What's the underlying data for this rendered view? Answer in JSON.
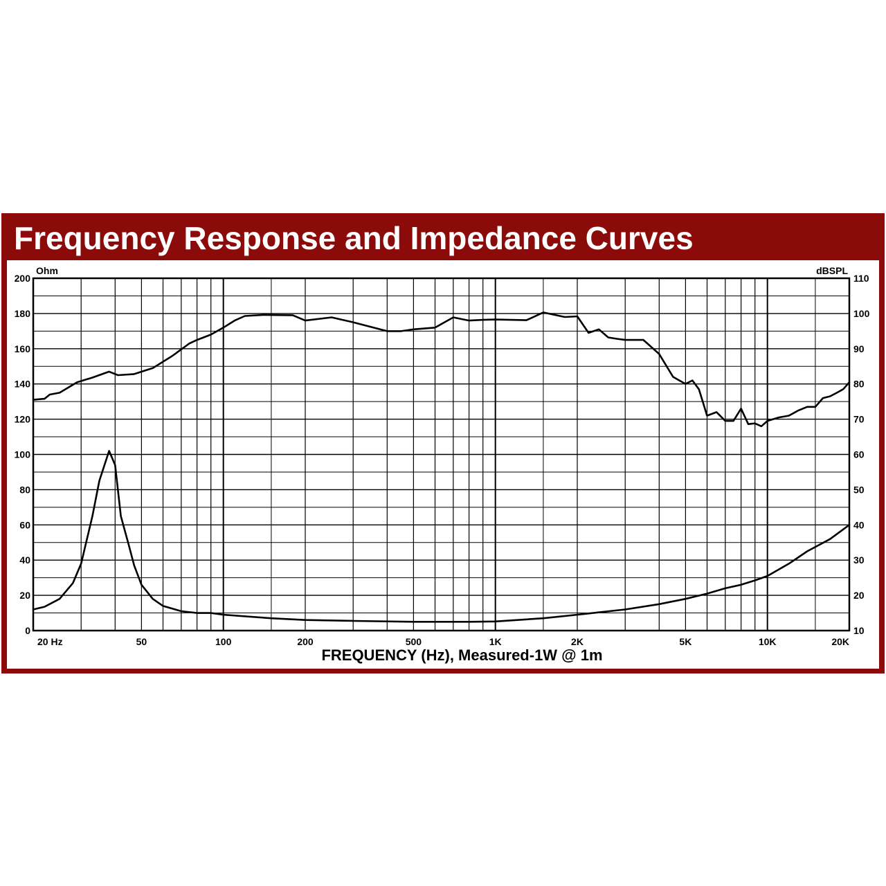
{
  "title": "Frequency Response and Impedance Curves",
  "chart_data": {
    "type": "line",
    "xlabel": "FREQUENCY (Hz), Measured-1W @ 1m",
    "x_scale": "log",
    "xlim": [
      20,
      20000
    ],
    "x_ticks": [
      {
        "value": 20,
        "label": "20 Hz"
      },
      {
        "value": 50,
        "label": "50"
      },
      {
        "value": 100,
        "label": "100"
      },
      {
        "value": 200,
        "label": "200"
      },
      {
        "value": 500,
        "label": "500"
      },
      {
        "value": 1000,
        "label": "1K"
      },
      {
        "value": 2000,
        "label": "2K"
      },
      {
        "value": 5000,
        "label": "5K"
      },
      {
        "value": 10000,
        "label": "10K"
      },
      {
        "value": 20000,
        "label": "20K"
      }
    ],
    "y_left": {
      "label": "Ohm",
      "ylim": [
        0,
        200
      ],
      "ticks": [
        "0",
        "20",
        "40",
        "60",
        "80",
        "100",
        "120",
        "140",
        "160",
        "180",
        "200"
      ]
    },
    "y_right": {
      "label": "dBSPL",
      "ylim": [
        10,
        110
      ],
      "ticks": [
        "10",
        "20",
        "30",
        "40",
        "50",
        "60",
        "70",
        "80",
        "90",
        "100",
        "110"
      ]
    },
    "grid": true,
    "series": [
      {
        "axis": "right",
        "x": [
          20,
          22,
          23,
          25,
          29,
          33,
          38,
          41,
          47,
          55,
          65,
          75,
          80,
          90,
          100,
          110,
          120,
          140,
          180,
          200,
          250,
          300,
          400,
          450,
          500,
          600,
          650,
          700,
          800,
          900,
          1000,
          1300,
          1500,
          1800,
          2000,
          2200,
          2400,
          2600,
          2800,
          3000,
          3500,
          4000,
          4500,
          5000,
          5300,
          5600,
          6000,
          6500,
          7000,
          7500,
          8000,
          8500,
          9000,
          9500,
          10000,
          11000,
          12000,
          13000,
          14000,
          15000,
          16000,
          17000,
          18000,
          19000,
          20000
        ],
        "y": [
          75.5,
          75.8,
          77,
          77.5,
          80.5,
          81.8,
          83.5,
          82.5,
          82.8,
          84.5,
          88,
          91.5,
          92.5,
          94,
          96,
          98,
          99.3,
          99.6,
          99.5,
          98,
          98.9,
          97.5,
          95,
          95,
          95.5,
          96,
          97.5,
          98.9,
          98,
          98.2,
          98.3,
          98.1,
          100.3,
          99,
          99.2,
          94.5,
          95.5,
          93.2,
          92.8,
          92.5,
          92.5,
          88.5,
          82,
          80,
          81,
          78.5,
          71,
          72,
          69.5,
          69.5,
          73,
          68.6,
          68.8,
          68,
          69.5,
          70.5,
          71,
          72.5,
          73.5,
          73.5,
          76,
          76.5,
          77.5,
          78.5,
          80.5
        ]
      },
      {
        "axis": "left",
        "x": [
          20,
          22,
          25,
          28,
          30,
          33,
          35,
          38,
          40,
          42,
          45,
          47,
          50,
          55,
          60,
          70,
          80,
          90,
          100,
          150,
          200,
          300,
          500,
          800,
          1000,
          1500,
          2000,
          3000,
          4000,
          5000,
          6000,
          7000,
          8000,
          9000,
          10000,
          12000,
          14000,
          17000,
          20000
        ],
        "y": [
          12,
          13.5,
          18,
          27,
          38,
          65,
          85,
          102,
          94,
          65,
          48,
          37,
          26,
          18,
          14,
          11,
          10,
          10,
          9,
          7,
          6,
          5.5,
          5,
          5,
          5.2,
          7,
          9,
          12,
          15,
          18,
          21,
          24,
          26,
          28.5,
          31,
          38,
          45,
          52,
          60
        ]
      }
    ]
  }
}
